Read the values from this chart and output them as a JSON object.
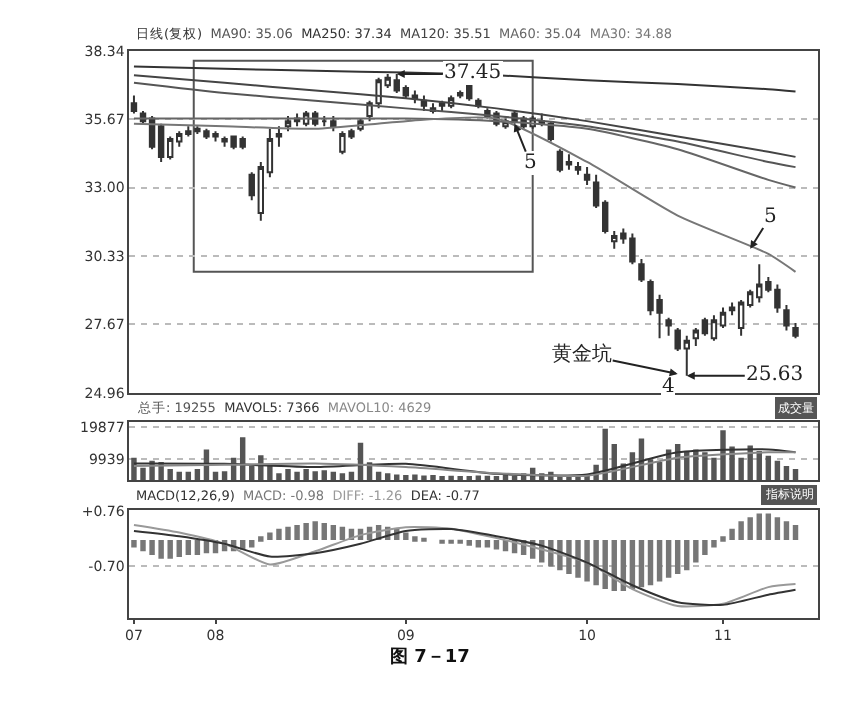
{
  "chart_data": [
    {
      "type": "candlestick",
      "legend_title": "日线(复权)",
      "color": "#333333",
      "categories": [
        "07",
        null,
        null,
        null,
        null,
        null,
        null,
        null,
        null,
        "08",
        null,
        null,
        null,
        null,
        null,
        null,
        null,
        null,
        null,
        null,
        null,
        null,
        null,
        null,
        null,
        null,
        null,
        null,
        null,
        null,
        "09",
        null,
        null,
        null,
        null,
        null,
        null,
        null,
        null,
        null,
        null,
        null,
        null,
        null,
        null,
        null,
        null,
        null,
        null,
        null,
        "10",
        null,
        null,
        null,
        null,
        null,
        null,
        null,
        null,
        null,
        null,
        null,
        null,
        null,
        null,
        "11",
        null,
        null,
        null,
        null,
        null,
        null,
        null,
        null
      ],
      "ohlc": [
        [
          36.3,
          36.6,
          35.9,
          36.0
        ],
        [
          35.9,
          36.0,
          35.5,
          35.6
        ],
        [
          35.7,
          35.8,
          34.5,
          34.6
        ],
        [
          35.4,
          35.5,
          34.0,
          34.2
        ],
        [
          34.2,
          35.0,
          34.1,
          34.9
        ],
        [
          34.8,
          35.2,
          34.6,
          35.1
        ],
        [
          35.2,
          35.4,
          35.0,
          35.1
        ],
        [
          35.3,
          35.4,
          35.1,
          35.2
        ],
        [
          35.2,
          35.3,
          34.9,
          35.0
        ],
        [
          35.0,
          35.2,
          34.8,
          35.1
        ],
        [
          34.8,
          35.0,
          34.6,
          34.9
        ],
        [
          35.0,
          35.0,
          34.5,
          34.6
        ],
        [
          34.9,
          35.0,
          34.5,
          34.6
        ],
        [
          33.5,
          33.6,
          32.5,
          32.7
        ],
        [
          32.0,
          34.0,
          31.7,
          33.8
        ],
        [
          33.6,
          35.3,
          33.4,
          34.9
        ],
        [
          35.0,
          35.4,
          34.6,
          35.1
        ],
        [
          35.4,
          35.8,
          35.2,
          35.6
        ],
        [
          35.6,
          35.9,
          35.4,
          35.7
        ],
        [
          35.5,
          36.0,
          35.4,
          35.9
        ],
        [
          35.9,
          36.0,
          35.4,
          35.5
        ],
        [
          35.6,
          35.8,
          35.4,
          35.6
        ],
        [
          35.6,
          35.8,
          35.2,
          35.4
        ],
        [
          34.4,
          35.2,
          34.3,
          35.1
        ],
        [
          35.2,
          35.3,
          34.9,
          35.0
        ],
        [
          35.3,
          35.7,
          35.2,
          35.6
        ],
        [
          35.8,
          36.4,
          35.6,
          36.3
        ],
        [
          36.3,
          37.3,
          36.1,
          37.2
        ],
        [
          37.0,
          37.45,
          36.9,
          37.3
        ],
        [
          37.2,
          37.45,
          36.7,
          36.8
        ],
        [
          36.9,
          37.0,
          36.5,
          36.6
        ],
        [
          36.6,
          36.8,
          36.3,
          36.5
        ],
        [
          36.4,
          36.6,
          36.0,
          36.2
        ],
        [
          36.1,
          36.3,
          35.9,
          36.0
        ],
        [
          36.2,
          36.4,
          36.0,
          36.3
        ],
        [
          36.2,
          36.6,
          36.1,
          36.5
        ],
        [
          36.6,
          36.8,
          36.5,
          36.7
        ],
        [
          37.0,
          37.1,
          36.4,
          36.5
        ],
        [
          36.4,
          36.5,
          36.1,
          36.2
        ],
        [
          36.0,
          36.1,
          35.7,
          35.8
        ],
        [
          35.9,
          36.0,
          35.4,
          35.5
        ],
        [
          35.4,
          35.7,
          35.3,
          35.6
        ],
        [
          35.9,
          36.0,
          35.5,
          35.6
        ],
        [
          35.7,
          35.8,
          35.3,
          35.4
        ],
        [
          35.4,
          35.8,
          35.3,
          35.7
        ],
        [
          35.6,
          35.9,
          35.4,
          35.5
        ],
        [
          35.5,
          35.6,
          34.8,
          34.9
        ],
        [
          34.4,
          34.5,
          33.6,
          33.7
        ],
        [
          34.0,
          34.3,
          33.7,
          33.9
        ],
        [
          33.8,
          34.0,
          33.5,
          33.7
        ],
        [
          33.5,
          33.8,
          33.1,
          33.3
        ],
        [
          33.2,
          33.5,
          32.2,
          32.3
        ],
        [
          32.4,
          32.5,
          31.2,
          31.3
        ],
        [
          30.9,
          31.3,
          30.6,
          31.1
        ],
        [
          31.2,
          31.4,
          30.8,
          31.0
        ],
        [
          31.0,
          31.2,
          30.0,
          30.1
        ],
        [
          30.0,
          30.2,
          29.3,
          29.4
        ],
        [
          29.3,
          29.4,
          28.0,
          28.2
        ],
        [
          28.6,
          28.8,
          27.1,
          28.1
        ],
        [
          27.8,
          27.9,
          27.2,
          27.6
        ],
        [
          27.4,
          27.5,
          26.6,
          26.7
        ],
        [
          26.7,
          27.2,
          25.63,
          27.0
        ],
        [
          27.1,
          27.5,
          26.8,
          27.4
        ],
        [
          27.8,
          27.9,
          27.2,
          27.3
        ],
        [
          27.1,
          28.0,
          27.0,
          27.8
        ],
        [
          27.6,
          28.3,
          27.5,
          28.1
        ],
        [
          28.2,
          28.5,
          28.0,
          28.3
        ],
        [
          27.5,
          28.6,
          27.2,
          28.5
        ],
        [
          28.4,
          29.0,
          28.3,
          28.9
        ],
        [
          28.7,
          30.0,
          28.5,
          29.2
        ],
        [
          29.3,
          29.5,
          28.9,
          29.0
        ],
        [
          29.0,
          29.2,
          28.1,
          28.3
        ],
        [
          28.2,
          28.4,
          27.4,
          27.6
        ],
        [
          27.5,
          27.7,
          27.1,
          27.2
        ]
      ],
      "series": [
        {
          "name": "MA90: 35.06",
          "type": "line",
          "color": "#555555",
          "values": [
            37.1,
            null,
            null,
            null,
            null,
            null,
            null,
            null,
            null,
            null,
            36.7,
            null,
            null,
            null,
            null,
            null,
            null,
            null,
            null,
            null,
            36.4,
            null,
            null,
            null,
            null,
            null,
            null,
            null,
            null,
            null,
            36.1,
            null,
            null,
            null,
            null,
            null,
            null,
            null,
            null,
            null,
            35.8,
            null,
            null,
            null,
            null,
            null,
            null,
            null,
            null,
            null,
            35.4,
            null,
            null,
            null,
            null,
            null,
            null,
            null,
            null,
            null,
            34.8,
            null,
            null,
            null,
            null,
            null,
            null,
            null,
            null,
            null,
            34.0,
            null,
            null,
            33.8
          ]
        },
        {
          "name": "MA250: 37.34",
          "type": "line",
          "color": "#333333",
          "values": [
            37.74,
            null,
            null,
            null,
            null,
            null,
            null,
            null,
            null,
            null,
            37.65,
            null,
            null,
            null,
            null,
            null,
            null,
            null,
            null,
            null,
            37.57,
            null,
            null,
            null,
            null,
            null,
            null,
            null,
            null,
            null,
            37.5,
            null,
            null,
            null,
            null,
            null,
            null,
            null,
            null,
            null,
            37.4,
            null,
            null,
            null,
            null,
            null,
            null,
            null,
            null,
            null,
            37.2,
            null,
            null,
            null,
            null,
            null,
            null,
            null,
            null,
            null,
            37.05,
            null,
            null,
            null,
            null,
            null,
            null,
            null,
            null,
            null,
            36.85,
            null,
            null,
            36.76
          ]
        },
        {
          "name": "MA120: 35.51",
          "type": "line",
          "color": "#444444",
          "values": [
            37.4,
            null,
            null,
            null,
            null,
            null,
            null,
            null,
            null,
            null,
            37.1,
            null,
            null,
            null,
            null,
            null,
            null,
            null,
            null,
            null,
            36.8,
            null,
            null,
            null,
            null,
            null,
            null,
            null,
            null,
            null,
            36.5,
            null,
            null,
            null,
            null,
            null,
            null,
            null,
            null,
            null,
            36.1,
            null,
            null,
            null,
            null,
            null,
            null,
            null,
            null,
            null,
            35.6,
            null,
            null,
            null,
            null,
            null,
            null,
            null,
            null,
            null,
            35.0,
            null,
            null,
            null,
            null,
            null,
            null,
            null,
            null,
            null,
            34.4,
            null,
            null,
            34.2
          ]
        },
        {
          "name": "MA60: 35.04",
          "type": "line",
          "color": "#666666",
          "values": [
            35.7,
            null,
            null,
            null,
            null,
            null,
            null,
            null,
            null,
            null,
            35.7,
            null,
            null,
            null,
            null,
            null,
            null,
            null,
            null,
            null,
            35.7,
            null,
            null,
            null,
            null,
            null,
            null,
            null,
            null,
            null,
            35.7,
            null,
            null,
            null,
            null,
            null,
            null,
            null,
            null,
            null,
            35.6,
            null,
            null,
            null,
            null,
            null,
            null,
            null,
            null,
            null,
            35.3,
            null,
            null,
            null,
            null,
            null,
            null,
            null,
            null,
            null,
            34.5,
            null,
            null,
            null,
            null,
            null,
            null,
            null,
            null,
            null,
            33.3,
            null,
            null,
            33.0
          ]
        },
        {
          "name": "MA30: 34.88",
          "type": "line",
          "color": "#777777",
          "values": [
            35.5,
            null,
            null,
            null,
            null,
            null,
            null,
            null,
            null,
            null,
            35.4,
            null,
            null,
            null,
            null,
            null,
            null,
            null,
            null,
            null,
            35.3,
            null,
            null,
            null,
            null,
            null,
            null,
            null,
            null,
            null,
            35.6,
            null,
            null,
            null,
            null,
            null,
            null,
            null,
            null,
            null,
            35.7,
            null,
            null,
            null,
            null,
            null,
            null,
            null,
            null,
            null,
            34.0,
            null,
            null,
            null,
            null,
            null,
            null,
            null,
            null,
            null,
            31.9,
            null,
            null,
            null,
            null,
            null,
            null,
            null,
            null,
            null,
            30.4,
            null,
            null,
            29.7
          ]
        }
      ],
      "ylim": [
        24.96,
        38.34
      ],
      "yticks": [
        38.34,
        35.67,
        {
          "value": 33.0,
          "label": "33.00"
        },
        30.33,
        27.67,
        24.96
      ],
      "grid": "y",
      "tick_labels": "y",
      "annotations": [
        {
          "text": "37.45",
          "y": 37.45
        },
        "5",
        "5",
        "4",
        "黄金坑",
        {
          "text": "25.63",
          "y": 25.63
        }
      ]
    },
    {
      "type": "bar",
      "categories": [
        "07",
        null,
        null,
        null,
        null,
        null,
        null,
        null,
        null,
        "08",
        null,
        null,
        null,
        null,
        null,
        null,
        null,
        null,
        null,
        null,
        null,
        null,
        null,
        null,
        null,
        null,
        null,
        null,
        null,
        null,
        "09",
        null,
        null,
        null,
        null,
        null,
        null,
        null,
        null,
        null,
        null,
        null,
        null,
        null,
        null,
        null,
        null,
        null,
        null,
        null,
        "10",
        null,
        null,
        null,
        null,
        null,
        null,
        null,
        null,
        null,
        null,
        null,
        null,
        null,
        null,
        "11",
        null,
        null,
        null,
        null,
        null,
        null,
        null,
        null
      ],
      "series": [
        {
          "name": "总手: 19255",
          "type": "bar",
          "color": "#555555",
          "values": [
            10400,
            7300,
            9500,
            9100,
            6900,
            6000,
            6000,
            6900,
            13000,
            6000,
            6200,
            10400,
            16800,
            7800,
            11200,
            8000,
            5600,
            6900,
            6000,
            6900,
            6200,
            6500,
            6000,
            5600,
            6000,
            15100,
            9000,
            6000,
            5600,
            5200,
            5000,
            5200,
            4900,
            5000,
            4700,
            4800,
            4700,
            4700,
            4900,
            4800,
            4700,
            5000,
            4800,
            5600,
            7300,
            5600,
            6000,
            5000,
            5000,
            4900,
            5000,
            8200,
            19400,
            14700,
            8600,
            12100,
            16400,
            9900,
            9100,
            13000,
            14700,
            12500,
            13000,
            12100,
            10400,
            19000,
            13900,
            10400,
            14200,
            12500,
            11000,
            9500,
            7800,
            6900
          ]
        },
        {
          "name": "MAVOL5: 7366",
          "type": "line",
          "color": "#333333",
          "values": [
            8600,
            null,
            null,
            null,
            null,
            null,
            null,
            null,
            null,
            null,
            8500,
            null,
            null,
            null,
            null,
            null,
            null,
            null,
            null,
            null,
            7500,
            null,
            null,
            null,
            null,
            null,
            null,
            null,
            null,
            null,
            8500,
            null,
            null,
            null,
            null,
            null,
            null,
            null,
            null,
            null,
            5400,
            null,
            null,
            null,
            null,
            null,
            null,
            null,
            null,
            null,
            5200,
            null,
            null,
            null,
            null,
            null,
            null,
            null,
            null,
            null,
            12100,
            null,
            null,
            null,
            null,
            null,
            null,
            null,
            null,
            null,
            13000,
            null,
            null,
            12100
          ]
        },
        {
          "name": "MAVOL10: 4629",
          "type": "line",
          "color": "#888888",
          "values": [
            7800,
            null,
            null,
            null,
            null,
            null,
            null,
            null,
            null,
            null,
            8200,
            null,
            null,
            null,
            null,
            null,
            null,
            null,
            null,
            null,
            8600,
            null,
            null,
            null,
            null,
            null,
            null,
            null,
            null,
            null,
            7500,
            null,
            null,
            null,
            null,
            null,
            null,
            null,
            null,
            null,
            5600,
            null,
            null,
            null,
            null,
            null,
            null,
            null,
            null,
            null,
            4800,
            null,
            null,
            null,
            null,
            null,
            null,
            null,
            null,
            null,
            10400,
            null,
            null,
            null,
            null,
            null,
            null,
            null,
            null,
            null,
            12100,
            null,
            null,
            12100
          ]
        }
      ],
      "ylim": [
        3500,
        21500
      ],
      "yticks": [
        9939,
        19877
      ],
      "grid": "y",
      "tick_labels": "y",
      "annotations": [
        "成交量"
      ]
    },
    {
      "type": "bar",
      "legend_title": "MACD(12,26,9)",
      "categories": [
        "07",
        null,
        null,
        null,
        null,
        null,
        null,
        null,
        null,
        "08",
        null,
        null,
        null,
        null,
        null,
        null,
        null,
        null,
        null,
        null,
        null,
        null,
        null,
        null,
        null,
        null,
        null,
        null,
        null,
        null,
        "09",
        null,
        null,
        null,
        null,
        null,
        null,
        null,
        null,
        null,
        null,
        null,
        null,
        null,
        null,
        null,
        null,
        null,
        null,
        null,
        "10",
        null,
        null,
        null,
        null,
        null,
        null,
        null,
        null,
        null,
        null,
        null,
        null,
        null,
        null,
        "11",
        null,
        null,
        null,
        null,
        null,
        null,
        null,
        null
      ],
      "series": [
        {
          "name": "MACD: -0.98",
          "type": "bar",
          "color": "#777777",
          "values": [
            -0.2,
            -0.3,
            -0.4,
            -0.5,
            -0.5,
            -0.45,
            -0.4,
            -0.4,
            -0.35,
            -0.35,
            -0.3,
            -0.3,
            -0.25,
            -0.2,
            0.1,
            0.2,
            0.3,
            0.35,
            0.4,
            0.45,
            0.5,
            0.45,
            0.4,
            0.35,
            0.3,
            0.3,
            0.35,
            0.4,
            0.35,
            0.3,
            0.2,
            0.1,
            0.05,
            0.0,
            -0.05,
            -0.1,
            -0.1,
            -0.15,
            -0.2,
            -0.2,
            -0.25,
            -0.3,
            -0.35,
            -0.4,
            -0.5,
            -0.6,
            -0.7,
            -0.8,
            -0.9,
            -1.0,
            -1.1,
            -1.2,
            -1.3,
            -1.35,
            -1.35,
            -1.3,
            -1.25,
            -1.2,
            -1.1,
            -1.0,
            -0.9,
            -0.8,
            -0.6,
            -0.4,
            -0.2,
            0.1,
            0.3,
            0.5,
            0.6,
            0.7,
            0.7,
            0.6,
            0.5,
            0.4
          ]
        },
        {
          "name": "DIFF: -1.26",
          "type": "line",
          "color": "#999999",
          "values": [
            0.4,
            null,
            null,
            null,
            null,
            0.2,
            null,
            null,
            null,
            null,
            -0.1,
            null,
            null,
            null,
            null,
            -0.65,
            null,
            null,
            null,
            null,
            -0.3,
            null,
            null,
            null,
            null,
            0.13,
            null,
            null,
            null,
            null,
            0.34,
            null,
            null,
            null,
            null,
            0.3,
            null,
            null,
            null,
            null,
            0.05,
            null,
            null,
            null,
            null,
            -0.25,
            null,
            null,
            null,
            null,
            -0.6,
            null,
            null,
            null,
            null,
            -1.3,
            null,
            null,
            null,
            null,
            -1.75,
            null,
            null,
            null,
            null,
            -1.69,
            null,
            null,
            null,
            null,
            -1.25,
            null,
            null,
            -1.17
          ]
        },
        {
          "name": "DEA: -0.77",
          "type": "line",
          "color": "#333333",
          "values": [
            0.24,
            null,
            null,
            null,
            null,
            0.1,
            null,
            null,
            null,
            null,
            -0.1,
            null,
            null,
            null,
            null,
            -0.44,
            null,
            null,
            null,
            null,
            -0.35,
            null,
            null,
            null,
            null,
            -0.1,
            null,
            null,
            null,
            null,
            0.24,
            null,
            null,
            null,
            null,
            0.29,
            null,
            null,
            null,
            null,
            0.1,
            null,
            null,
            null,
            null,
            -0.15,
            null,
            null,
            null,
            null,
            -0.6,
            null,
            null,
            null,
            null,
            -1.2,
            null,
            null,
            null,
            null,
            -1.65,
            null,
            null,
            null,
            null,
            -1.72,
            null,
            null,
            null,
            null,
            -1.45,
            null,
            null,
            -1.32
          ]
        }
      ],
      "ylim": [
        -2.06,
        0.8
      ],
      "yticks": [
        {
          "value": 0.76,
          "label": "+0.76"
        },
        {
          "value": -0.7,
          "label": "-0.70"
        }
      ],
      "grid": "y",
      "annotations": [
        "指标说明",
        "图 7－17"
      ]
    }
  ]
}
